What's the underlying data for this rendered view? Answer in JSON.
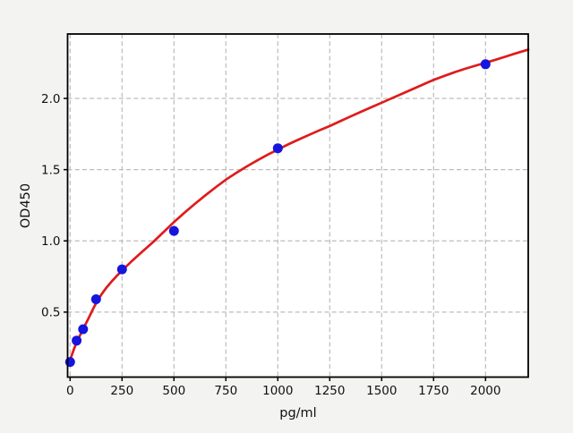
{
  "figure": {
    "title": "",
    "background_color": "#f3f3f1",
    "plot_background_color": "#ffffff"
  },
  "chart_data": {
    "type": "scatter",
    "title": "",
    "xlabel": "pg/ml",
    "ylabel": "OD450",
    "xlim": [
      -12.1,
      2205.6
    ],
    "ylim": [
      0.044,
      2.452
    ],
    "x_ticks": [
      0,
      250,
      500,
      750,
      1000,
      1250,
      1500,
      1750,
      2000
    ],
    "x_tick_labels": [
      "0",
      "250",
      "500",
      "750",
      "1000",
      "1250",
      "1500",
      "1750",
      "2000"
    ],
    "y_ticks": [
      0.5,
      1.0,
      1.5,
      2.0
    ],
    "y_tick_labels": [
      "0.5",
      "1.0",
      "1.5",
      "2.0"
    ],
    "grid": true,
    "grid_style": "dashed",
    "legend": false,
    "style": {
      "grid_color": "#bcbcbc",
      "spine_color": "#000000",
      "tick_label_color": "#111111"
    },
    "series": [
      {
        "name": "standard-points",
        "type": "scatter",
        "color": "#1515dd",
        "marker": "circle",
        "points": [
          [
            0,
            0.15
          ],
          [
            31.25,
            0.3
          ],
          [
            62.5,
            0.38
          ],
          [
            125,
            0.59
          ],
          [
            250,
            0.8
          ],
          [
            500,
            1.07
          ],
          [
            1000,
            1.65
          ],
          [
            2000,
            2.24
          ]
        ]
      },
      {
        "name": "fit-curve",
        "type": "line",
        "color": "#df1b1b",
        "points": [
          [
            0,
            0.165
          ],
          [
            10,
            0.205
          ],
          [
            20,
            0.246
          ],
          [
            31.25,
            0.285
          ],
          [
            47,
            0.335
          ],
          [
            62.5,
            0.382
          ],
          [
            80,
            0.432
          ],
          [
            100,
            0.49
          ],
          [
            112,
            0.527
          ],
          [
            125,
            0.562
          ],
          [
            150,
            0.622
          ],
          [
            175,
            0.672
          ],
          [
            200,
            0.715
          ],
          [
            225,
            0.755
          ],
          [
            250,
            0.792
          ],
          [
            300,
            0.862
          ],
          [
            350,
            0.928
          ],
          [
            400,
            0.992
          ],
          [
            450,
            1.062
          ],
          [
            500,
            1.132
          ],
          [
            550,
            1.197
          ],
          [
            600,
            1.259
          ],
          [
            650,
            1.318
          ],
          [
            700,
            1.375
          ],
          [
            750,
            1.43
          ],
          [
            800,
            1.477
          ],
          [
            850,
            1.522
          ],
          [
            900,
            1.564
          ],
          [
            950,
            1.604
          ],
          [
            1000,
            1.641
          ],
          [
            1050,
            1.677
          ],
          [
            1100,
            1.711
          ],
          [
            1150,
            1.744
          ],
          [
            1200,
            1.776
          ],
          [
            1250,
            1.806
          ],
          [
            1300,
            1.84
          ],
          [
            1350,
            1.873
          ],
          [
            1400,
            1.906
          ],
          [
            1450,
            1.938
          ],
          [
            1500,
            1.97
          ],
          [
            1550,
            2.002
          ],
          [
            1600,
            2.034
          ],
          [
            1650,
            2.066
          ],
          [
            1700,
            2.098
          ],
          [
            1750,
            2.13
          ],
          [
            1800,
            2.157
          ],
          [
            1850,
            2.183
          ],
          [
            1900,
            2.207
          ],
          [
            1950,
            2.229
          ],
          [
            2000,
            2.25
          ],
          [
            2050,
            2.272
          ],
          [
            2100,
            2.295
          ],
          [
            2150,
            2.318
          ],
          [
            2206,
            2.343
          ]
        ]
      }
    ]
  }
}
